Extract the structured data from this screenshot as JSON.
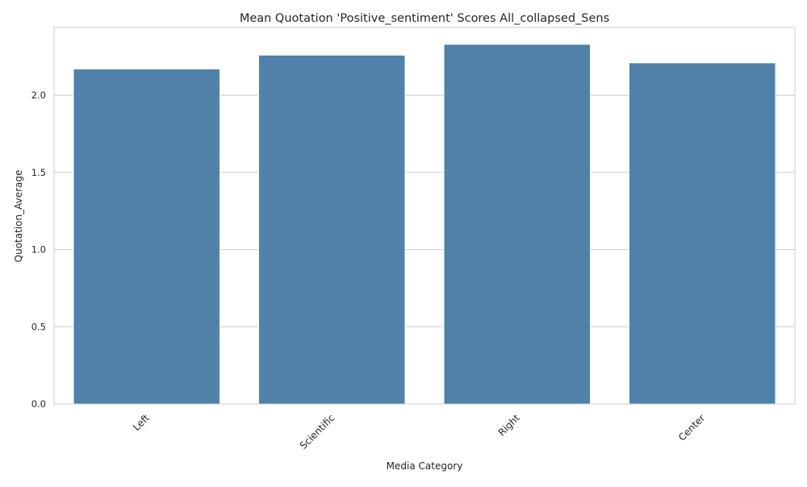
{
  "chart_data": {
    "type": "bar",
    "title": "Mean Quotation 'Positive_sentiment' Scores All_collapsed_Sens",
    "xlabel": "Media Category",
    "ylabel": "Quotation_Average",
    "categories": [
      "Left",
      "Scientific",
      "Right",
      "Center"
    ],
    "values": [
      2.17,
      2.26,
      2.33,
      2.21
    ],
    "ylim": [
      0,
      2.44
    ],
    "yticks": [
      0.0,
      0.5,
      1.0,
      1.5,
      2.0
    ],
    "ytick_labels": [
      "0.0",
      "0.5",
      "1.0",
      "1.5",
      "2.0"
    ],
    "grid": "horizontal",
    "bar_color": "#4f81a9",
    "grid_color": "#cccccc",
    "axis_color": "#cccccc"
  }
}
